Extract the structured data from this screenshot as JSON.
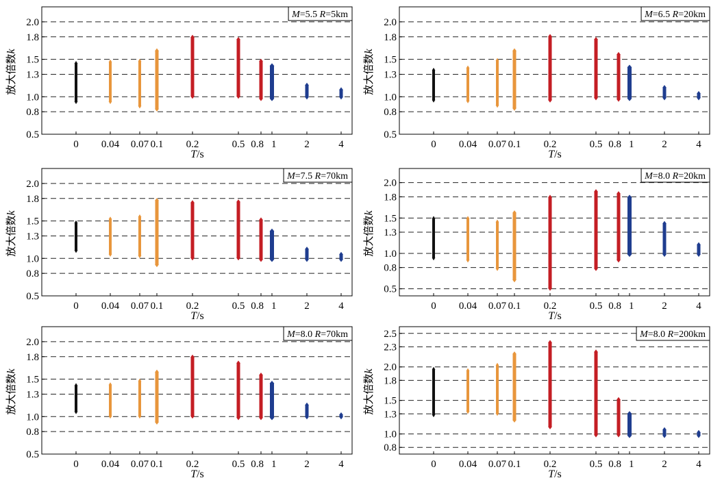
{
  "figure": {
    "x_ticks": [
      "0",
      "0.04",
      "0.07",
      "0.1",
      "0.2",
      "0.5",
      "0.8",
      "1",
      "2",
      "4"
    ],
    "colors": {
      "T0": "#111111",
      "short": "#e8963c",
      "mid": "#c41e24",
      "long": "#1f3d8f",
      "grid": "#222222",
      "frame": "#000000"
    }
  },
  "chart_data": [
    {
      "type": "scatter",
      "annotation": {
        "M_label": "M",
        "M_value": "=5.5 ",
        "R_label": "R",
        "R_value": "=5km"
      },
      "xlabel": {
        "italic": "T",
        "rest": "/s"
      },
      "ylabel": {
        "prefix": "放大倍数",
        "italic": "k"
      },
      "ylim": [
        0.5,
        2.2
      ],
      "yticks": [
        "0.5",
        "0.8",
        "1.0",
        "1.3",
        "1.5",
        "1.8",
        "2.0"
      ],
      "gridlines": [
        0.8,
        1.0,
        1.3,
        1.5,
        1.8,
        2.0
      ],
      "x_categories": [
        "0",
        "0.04",
        "0.07",
        "0.1",
        "0.2",
        "0.5",
        "0.8",
        "1",
        "2",
        "4"
      ],
      "ranges": [
        [
          0.93,
          1.45
        ],
        [
          0.93,
          1.47
        ],
        [
          0.87,
          1.48
        ],
        [
          0.83,
          1.62
        ],
        [
          1.0,
          1.8
        ],
        [
          1.0,
          1.77
        ],
        [
          0.97,
          1.48
        ],
        [
          0.97,
          1.42
        ],
        [
          0.99,
          1.16
        ],
        [
          0.99,
          1.1
        ]
      ]
    },
    {
      "type": "scatter",
      "annotation": {
        "M_label": "M",
        "M_value": "=6.5 ",
        "R_label": "R",
        "R_value": "=20km"
      },
      "xlabel": {
        "italic": "T",
        "rest": "/s"
      },
      "ylabel": {
        "prefix": "放大倍数",
        "italic": "k"
      },
      "ylim": [
        0.5,
        2.2
      ],
      "yticks": [
        "0.5",
        "0.8",
        "1.0",
        "1.3",
        "1.5",
        "1.8",
        "2.0"
      ],
      "gridlines": [
        0.8,
        1.0,
        1.3,
        1.5,
        1.8,
        2.0
      ],
      "x_categories": [
        "0",
        "0.04",
        "0.07",
        "0.1",
        "0.2",
        "0.5",
        "0.8",
        "1",
        "2",
        "4"
      ],
      "ranges": [
        [
          0.95,
          1.36
        ],
        [
          0.94,
          1.39
        ],
        [
          0.88,
          1.49
        ],
        [
          0.84,
          1.62
        ],
        [
          0.95,
          1.81
        ],
        [
          0.98,
          1.77
        ],
        [
          0.96,
          1.57
        ],
        [
          0.97,
          1.4
        ],
        [
          0.98,
          1.13
        ],
        [
          0.98,
          1.05
        ]
      ]
    },
    {
      "type": "scatter",
      "annotation": {
        "M_label": "M",
        "M_value": "=7.5 ",
        "R_label": "R",
        "R_value": "=70km"
      },
      "xlabel": {
        "italic": "T",
        "rest": "/s"
      },
      "ylabel": {
        "prefix": "放大倍数",
        "italic": "k"
      },
      "ylim": [
        0.5,
        2.2
      ],
      "yticks": [
        "0.5",
        "0.8",
        "1.0",
        "1.3",
        "1.5",
        "1.8",
        "2.0"
      ],
      "gridlines": [
        0.8,
        1.0,
        1.3,
        1.5,
        1.8,
        2.0
      ],
      "x_categories": [
        "0",
        "0.04",
        "0.07",
        "0.1",
        "0.2",
        "0.5",
        "0.8",
        "1",
        "2",
        "4"
      ],
      "ranges": [
        [
          1.1,
          1.48
        ],
        [
          1.05,
          1.53
        ],
        [
          1.03,
          1.56
        ],
        [
          0.91,
          1.78
        ],
        [
          1.0,
          1.75
        ],
        [
          1.0,
          1.76
        ],
        [
          0.98,
          1.52
        ],
        [
          0.98,
          1.37
        ],
        [
          0.98,
          1.13
        ],
        [
          0.98,
          1.06
        ]
      ]
    },
    {
      "type": "scatter",
      "annotation": {
        "M_label": "M",
        "M_value": "=8.0 ",
        "R_label": "R",
        "R_value": "=20km"
      },
      "xlabel": {
        "italic": "T",
        "rest": "/s"
      },
      "ylabel": {
        "prefix": "放大倍数",
        "italic": "k"
      },
      "ylim": [
        0.4,
        2.2
      ],
      "yticks": [
        "0.5",
        "0.8",
        "1.0",
        "1.3",
        "1.5",
        "1.8",
        "2.0"
      ],
      "gridlines": [
        0.5,
        0.8,
        1.0,
        1.3,
        1.5,
        1.8,
        2.0
      ],
      "x_categories": [
        "0",
        "0.04",
        "0.07",
        "0.1",
        "0.2",
        "0.5",
        "0.8",
        "1",
        "2",
        "4"
      ],
      "ranges": [
        [
          0.93,
          1.5
        ],
        [
          0.9,
          1.5
        ],
        [
          0.78,
          1.45
        ],
        [
          0.62,
          1.58
        ],
        [
          0.5,
          1.8
        ],
        [
          0.78,
          1.88
        ],
        [
          0.9,
          1.85
        ],
        [
          0.98,
          1.8
        ],
        [
          0.98,
          1.43
        ],
        [
          0.98,
          1.13
        ]
      ]
    },
    {
      "type": "scatter",
      "annotation": {
        "M_label": "M",
        "M_value": "=8.0 ",
        "R_label": "R",
        "R_value": "=70km"
      },
      "xlabel": {
        "italic": "T",
        "rest": "/s"
      },
      "ylabel": {
        "prefix": "放大倍数",
        "italic": "k"
      },
      "ylim": [
        0.5,
        2.2
      ],
      "yticks": [
        "0.5",
        "0.8",
        "1.0",
        "1.3",
        "1.5",
        "1.8",
        "2.0"
      ],
      "gridlines": [
        0.8,
        1.0,
        1.3,
        1.5,
        1.8,
        2.0
      ],
      "x_categories": [
        "0",
        "0.04",
        "0.07",
        "0.1",
        "0.2",
        "0.5",
        "0.8",
        "1",
        "2",
        "4"
      ],
      "ranges": [
        [
          1.06,
          1.42
        ],
        [
          1.0,
          1.43
        ],
        [
          1.0,
          1.48
        ],
        [
          0.92,
          1.6
        ],
        [
          1.0,
          1.8
        ],
        [
          0.98,
          1.72
        ],
        [
          0.98,
          1.56
        ],
        [
          0.98,
          1.45
        ],
        [
          0.99,
          1.16
        ],
        [
          0.99,
          1.03
        ]
      ]
    },
    {
      "type": "scatter",
      "annotation": {
        "M_label": "M",
        "M_value": "=8.0 ",
        "R_label": "R",
        "R_value": "=200km"
      },
      "xlabel": {
        "italic": "T",
        "rest": "/s"
      },
      "ylabel": {
        "prefix": "放大倍数",
        "italic": "k"
      },
      "ylim": [
        0.7,
        2.6
      ],
      "yticks": [
        "0.8",
        "1.0",
        "1.3",
        "1.5",
        "1.8",
        "2.0",
        "2.3",
        "2.5"
      ],
      "gridlines": [
        0.8,
        1.0,
        1.3,
        1.5,
        1.8,
        2.0,
        2.3,
        2.5
      ],
      "x_categories": [
        "0",
        "0.04",
        "0.07",
        "0.1",
        "0.2",
        "0.5",
        "0.8",
        "1",
        "2",
        "4"
      ],
      "ranges": [
        [
          1.28,
          1.97
        ],
        [
          1.33,
          1.95
        ],
        [
          1.3,
          2.03
        ],
        [
          1.2,
          2.2
        ],
        [
          1.1,
          2.37
        ],
        [
          0.98,
          2.23
        ],
        [
          0.98,
          1.52
        ],
        [
          0.97,
          1.31
        ],
        [
          0.97,
          1.07
        ],
        [
          0.97,
          1.03
        ]
      ]
    }
  ]
}
